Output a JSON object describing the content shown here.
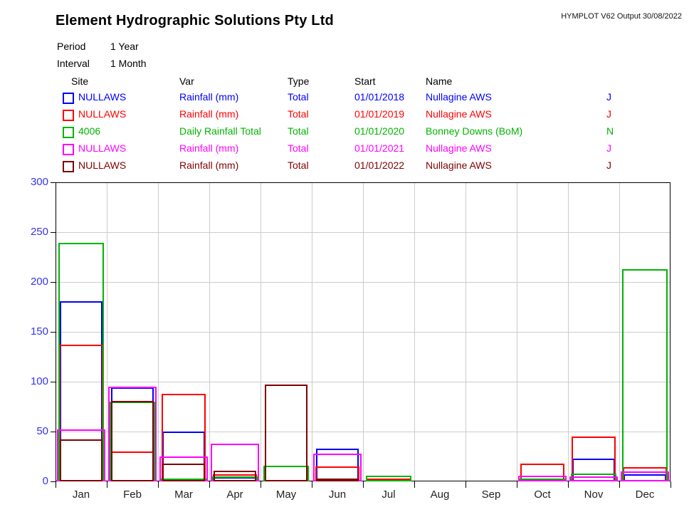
{
  "header": {
    "title": "Element Hydrographic Solutions Pty Ltd",
    "stamp": "HYMPLOT V62  Output 30/08/2022",
    "period_label": "Period",
    "period_value": "1 Year",
    "interval_label": "Interval",
    "interval_value": "1 Month"
  },
  "legend": {
    "columns": [
      "Site",
      "Var",
      "Type",
      "Start",
      "Name"
    ],
    "rows": [
      {
        "color": "#0000ff",
        "site": "NULLAWS",
        "var": "Rainfall (mm)",
        "type": "Total",
        "start": "01/01/2018",
        "name": "Nullagine AWS",
        "flag": "J"
      },
      {
        "color": "#ff0000",
        "site": "NULLAWS",
        "var": "Rainfall (mm)",
        "type": "Total",
        "start": "01/01/2019",
        "name": "Nullagine AWS",
        "flag": "J"
      },
      {
        "color": "#00b400",
        "site": "4006",
        "var": "Daily Rainfall Total",
        "type": "Total",
        "start": "01/01/2020",
        "name": "Bonney Downs (BoM)",
        "flag": "N"
      },
      {
        "color": "#ff00ff",
        "site": "NULLAWS",
        "var": "Rainfall (mm)",
        "type": "Total",
        "start": "01/01/2021",
        "name": "Nullagine AWS",
        "flag": "J"
      },
      {
        "color": "#800000",
        "site": "NULLAWS",
        "var": "Rainfall (mm)",
        "type": "Total",
        "start": "01/01/2022",
        "name": "Nullagine AWS",
        "flag": "J"
      }
    ]
  },
  "chart_data": {
    "type": "bar",
    "title": "",
    "xlabel": "",
    "ylabel": "",
    "categories": [
      "Jan",
      "Feb",
      "Mar",
      "Apr",
      "May",
      "Jun",
      "Jul",
      "Aug",
      "Sep",
      "Oct",
      "Nov",
      "Dec"
    ],
    "series": [
      {
        "name": "NULLAWS Rainfall (mm) Total 2018",
        "year": "2018",
        "color": "#0000ff",
        "values": [
          181,
          94,
          50,
          4,
          0,
          33,
          0,
          0,
          0,
          2,
          23,
          7
        ]
      },
      {
        "name": "NULLAWS Rainfall (mm) Total 2019",
        "year": "2019",
        "color": "#ff0000",
        "values": [
          137,
          30,
          88,
          7,
          0,
          15,
          2,
          0,
          0,
          18,
          45,
          14
        ]
      },
      {
        "name": "4006 Daily Rainfall Total 2020",
        "year": "2020",
        "color": "#00b400",
        "values": [
          239,
          80,
          3,
          5,
          16,
          0,
          6,
          0,
          0,
          3,
          8,
          213
        ]
      },
      {
        "name": "NULLAWS Rainfall (mm) Total 2021",
        "year": "2021",
        "color": "#ff00ff",
        "values": [
          52,
          95,
          25,
          38,
          0,
          28,
          0,
          0,
          0,
          6,
          5,
          10
        ]
      },
      {
        "name": "NULLAWS Rainfall (mm) Total 2022",
        "year": "2022",
        "color": "#800000",
        "values": [
          42,
          81,
          18,
          11,
          97,
          2,
          0,
          0,
          0,
          0,
          0,
          0
        ]
      }
    ],
    "ylim": [
      0,
      300
    ],
    "y_ticks": [
      0,
      50,
      100,
      150,
      200,
      250,
      300
    ],
    "grid": true,
    "legend_position": "top-table",
    "bar_style": "outlined-overlapping"
  }
}
